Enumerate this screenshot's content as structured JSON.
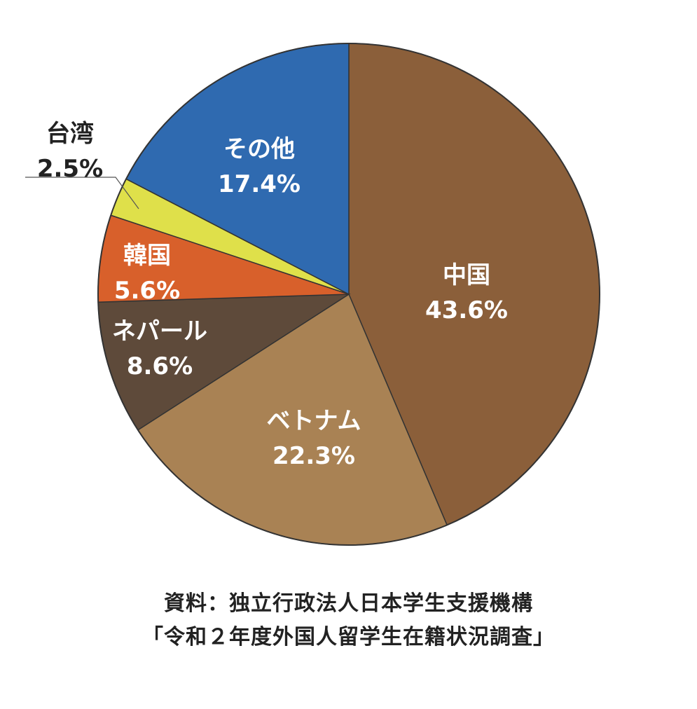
{
  "chart_data": {
    "type": "pie",
    "slices": [
      {
        "label": "中国",
        "value": 43.6,
        "display": "43.6%",
        "color": "#8b5f3a",
        "text_color": "#ffffff"
      },
      {
        "label": "ベトナム",
        "value": 22.3,
        "display": "22.3%",
        "color": "#a98254",
        "text_color": "#ffffff"
      },
      {
        "label": "ネパール",
        "value": 8.6,
        "display": "8.6%",
        "color": "#5e4a3a",
        "text_color": "#ffffff"
      },
      {
        "label": "韓国",
        "value": 5.6,
        "display": "5.6%",
        "color": "#d8602b",
        "text_color": "#ffffff"
      },
      {
        "label": "台湾",
        "value": 2.5,
        "display": "2.5%",
        "color": "#dfe04a",
        "text_color": "#222222"
      },
      {
        "label": "その他",
        "value": 17.4,
        "display": "17.4%",
        "color": "#2f6ab0",
        "text_color": "#ffffff"
      }
    ],
    "start_angle": "12 o'clock",
    "direction": "clockwise",
    "outline_color": "#333333"
  },
  "source": {
    "line1": "資料：独立行政法人日本学生支援機構",
    "line2": "「令和２年度外国人留学生在籍状況調査」"
  }
}
